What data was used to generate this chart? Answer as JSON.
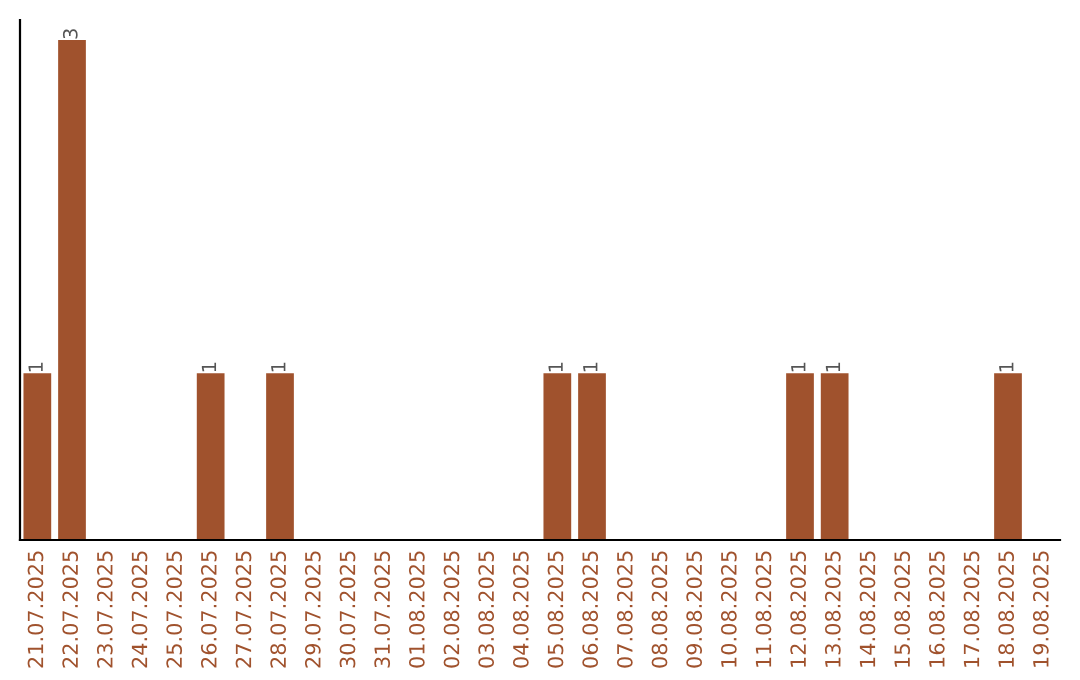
{
  "chart_data": {
    "type": "bar",
    "categories": [
      "21.07.2025",
      "22.07.2025",
      "23.07.2025",
      "24.07.2025",
      "25.07.2025",
      "26.07.2025",
      "27.07.2025",
      "28.07.2025",
      "29.07.2025",
      "30.07.2025",
      "31.07.2025",
      "01.08.2025",
      "02.08.2025",
      "03.08.2025",
      "04.08.2025",
      "05.08.2025",
      "06.08.2025",
      "07.08.2025",
      "08.08.2025",
      "09.08.2025",
      "10.08.2025",
      "11.08.2025",
      "12.08.2025",
      "13.08.2025",
      "14.08.2025",
      "15.08.2025",
      "16.08.2025",
      "17.08.2025",
      "18.08.2025",
      "19.08.2025"
    ],
    "values": [
      1,
      3,
      0,
      0,
      0,
      1,
      0,
      1,
      0,
      0,
      0,
      0,
      0,
      0,
      0,
      1,
      1,
      0,
      0,
      0,
      0,
      0,
      1,
      1,
      0,
      0,
      0,
      0,
      1,
      0
    ],
    "value_labels": [
      "1",
      "3",
      null,
      null,
      null,
      "1",
      null,
      "1",
      null,
      null,
      null,
      null,
      null,
      null,
      null,
      "1",
      "1",
      null,
      null,
      null,
      null,
      null,
      "1",
      "1",
      null,
      null,
      null,
      null,
      "1",
      null
    ],
    "color": "#a0522d",
    "tick_labels": "x",
    "grid": false,
    "legend": false
  }
}
